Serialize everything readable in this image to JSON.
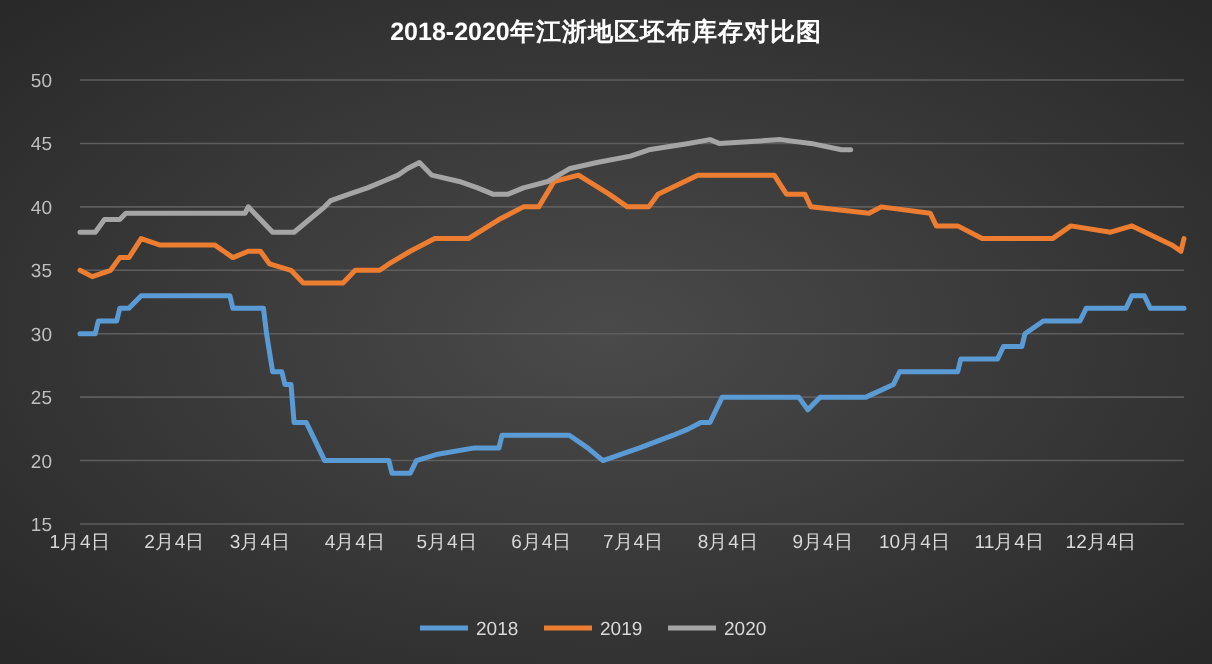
{
  "chart_data": {
    "type": "line",
    "title": "2018-2020年江浙地区坯布库存对比图",
    "xlim": [
      "--01-04",
      "--12-31"
    ],
    "xticks": [
      {
        "value": "--01-04",
        "label": "1月4日"
      },
      {
        "value": "--02-04",
        "label": "2月4日"
      },
      {
        "value": "--03-04",
        "label": "3月4日"
      },
      {
        "value": "--04-04",
        "label": "4月4日"
      },
      {
        "value": "--05-04",
        "label": "5月4日"
      },
      {
        "value": "--06-04",
        "label": "6月4日"
      },
      {
        "value": "--07-04",
        "label": "7月4日"
      },
      {
        "value": "--08-04",
        "label": "8月4日"
      },
      {
        "value": "--09-04",
        "label": "9月4日"
      },
      {
        "value": "--10-04",
        "label": "10月4日"
      },
      {
        "value": "--11-04",
        "label": "11月4日"
      },
      {
        "value": "--12-04",
        "label": "12月4日"
      }
    ],
    "ylim": [
      15,
      50
    ],
    "yticks": [
      15,
      20,
      25,
      30,
      35,
      40,
      45,
      50
    ],
    "grid": "y",
    "legend": "bottom",
    "marker": "none",
    "line_style": "solid",
    "series": [
      {
        "name": "2018",
        "color": "#5b9bd5",
        "x": [
          "--01-04",
          "--01-09",
          "--01-10",
          "--01-16",
          "--01-17",
          "--01-20",
          "--01-24",
          "--02-22",
          "--02-23",
          "--03-05",
          "--03-06",
          "--03-08",
          "--03-11",
          "--03-12",
          "--03-14",
          "--03-15",
          "--03-19",
          "--03-21",
          "--03-25",
          "--04-15",
          "--04-16",
          "--04-22",
          "--04-24",
          "--05-01",
          "--05-13",
          "--05-21",
          "--05-22",
          "--06-13",
          "--06-19",
          "--06-24",
          "--07-06",
          "--07-17",
          "--07-22",
          "--07-26",
          "--07-29",
          "--08-02",
          "--08-27",
          "--08-30",
          "--09-03",
          "--09-18",
          "--09-27",
          "--09-29",
          "--10-18",
          "--10-19",
          "--10-31",
          "--11-02",
          "--11-08",
          "--11-09",
          "--11-15",
          "--11-27",
          "--11-29",
          "--12-12",
          "--12-14",
          "--12-18",
          "--12-20",
          "--12-31"
        ],
        "values": [
          30,
          30,
          31,
          31,
          32,
          32,
          33,
          33,
          32,
          32,
          30,
          27,
          27,
          26,
          26,
          23,
          23,
          22,
          20,
          20,
          19,
          19,
          20,
          20.5,
          21,
          21,
          22,
          22,
          21,
          20,
          21,
          22,
          22.5,
          23,
          23,
          25,
          25,
          24,
          25,
          25,
          26,
          27,
          27,
          28,
          28,
          29,
          29,
          30,
          31,
          31,
          32,
          32,
          33,
          33,
          32,
          32
        ]
      },
      {
        "name": "2019",
        "color": "#ed7d31",
        "x": [
          "--01-04",
          "--01-08",
          "--01-14",
          "--01-17",
          "--01-20",
          "--01-24",
          "--01-30",
          "--02-17",
          "--02-20",
          "--02-23",
          "--02-28",
          "--03-04",
          "--03-07",
          "--03-14",
          "--03-18",
          "--03-31",
          "--04-04",
          "--04-12",
          "--04-15",
          "--04-22",
          "--04-30",
          "--05-11",
          "--05-21",
          "--05-29",
          "--06-03",
          "--06-08",
          "--06-16",
          "--06-26",
          "--07-02",
          "--07-09",
          "--07-12",
          "--07-25",
          "--08-19",
          "--08-23",
          "--08-29",
          "--08-31",
          "--09-19",
          "--09-23",
          "--10-09",
          "--10-11",
          "--10-18",
          "--10-26",
          "--11-18",
          "--11-24",
          "--12-07",
          "--12-14",
          "--12-27",
          "--12-30",
          "--12-31"
        ],
        "values": [
          35,
          34.5,
          35,
          36,
          36,
          37.5,
          37,
          37,
          36.5,
          36,
          36.5,
          36.5,
          35.5,
          35,
          34,
          34,
          35,
          35,
          35.5,
          36.5,
          37.5,
          37.5,
          39,
          40,
          40,
          42,
          42.5,
          41,
          40,
          40,
          41,
          42.5,
          42.5,
          41,
          41,
          40,
          39.5,
          40,
          39.5,
          38.5,
          38.5,
          37.5,
          37.5,
          38.5,
          38,
          38.5,
          37,
          36.5,
          37.5
        ]
      },
      {
        "name": "2020",
        "color": "#a5a5a5",
        "x": [
          "--01-04",
          "--01-09",
          "--01-12",
          "--01-17",
          "--01-19",
          "--02-27",
          "--02-28",
          "--03-04",
          "--03-08",
          "--03-15",
          "--03-20",
          "--03-25",
          "--03-27",
          "--04-02",
          "--04-08",
          "--04-13",
          "--04-18",
          "--04-21",
          "--04-25",
          "--04-29",
          "--05-08",
          "--05-14",
          "--05-19",
          "--05-24",
          "--05-29",
          "--06-06",
          "--06-13",
          "--06-22",
          "--07-03",
          "--07-09",
          "--07-22",
          "--07-29",
          "--08-01",
          "--08-21",
          "--08-31",
          "--09-10",
          "--09-13"
        ],
        "values": [
          38,
          38,
          39,
          39,
          39.5,
          39.5,
          40,
          39,
          38,
          38,
          39,
          40,
          40.5,
          41,
          41.5,
          42,
          42.5,
          43,
          43.5,
          42.5,
          42,
          41.5,
          41,
          41,
          41.5,
          42,
          43,
          43.5,
          44,
          44.5,
          45,
          45.3,
          45,
          45.3,
          45,
          44.5,
          44.5
        ]
      }
    ]
  }
}
